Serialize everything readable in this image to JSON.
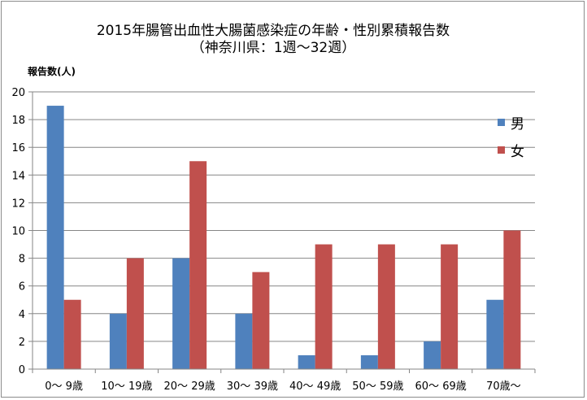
{
  "chart_data": {
    "type": "bar",
    "title": "2015年腸管出血性大腸菌感染症の年齢・性別累積報告数",
    "subtitle": "（神奈川県：1週〜32週）",
    "ylabel": "報告数(人)",
    "xlabel": "",
    "categories": [
      "0〜 9歳",
      "10〜 19歳",
      "20〜 29歳",
      "30〜 39歳",
      "40〜 49歳",
      "50〜 59歳",
      "60〜 69歳",
      "70歳〜"
    ],
    "series": [
      {
        "name": "男",
        "color": "#4f81bd",
        "values": [
          19,
          4,
          8,
          4,
          1,
          1,
          2,
          5
        ]
      },
      {
        "name": "女",
        "color": "#c0504d",
        "values": [
          5,
          8,
          15,
          7,
          9,
          9,
          9,
          10
        ]
      }
    ],
    "ylim": [
      0,
      20
    ],
    "yticks": [
      0,
      2,
      4,
      6,
      8,
      10,
      12,
      14,
      16,
      18,
      20
    ],
    "grid": true,
    "legend_position": "right"
  }
}
